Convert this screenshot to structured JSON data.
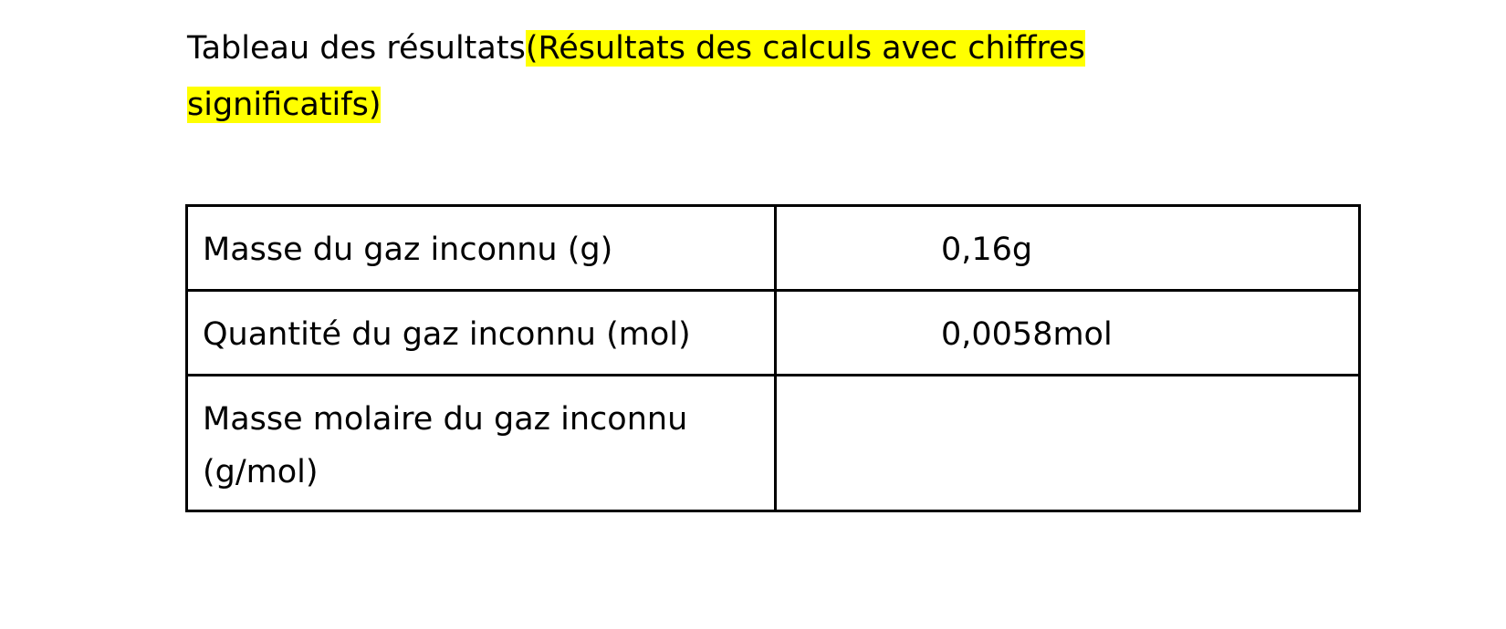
{
  "heading": {
    "plain": "Tableau des résultats",
    "highlighted": "(Résultats des calculs avec chiffres significatifs)",
    "highlight_color": "#ffff00"
  },
  "table": {
    "rows": [
      {
        "label": "Masse du gaz inconnu (g)",
        "value": "0,16g"
      },
      {
        "label": "Quantité du gaz inconnu (mol)",
        "value": "0,0058mol"
      },
      {
        "label": "Masse molaire du gaz inconnu (g/mol)",
        "value": ""
      }
    ]
  }
}
